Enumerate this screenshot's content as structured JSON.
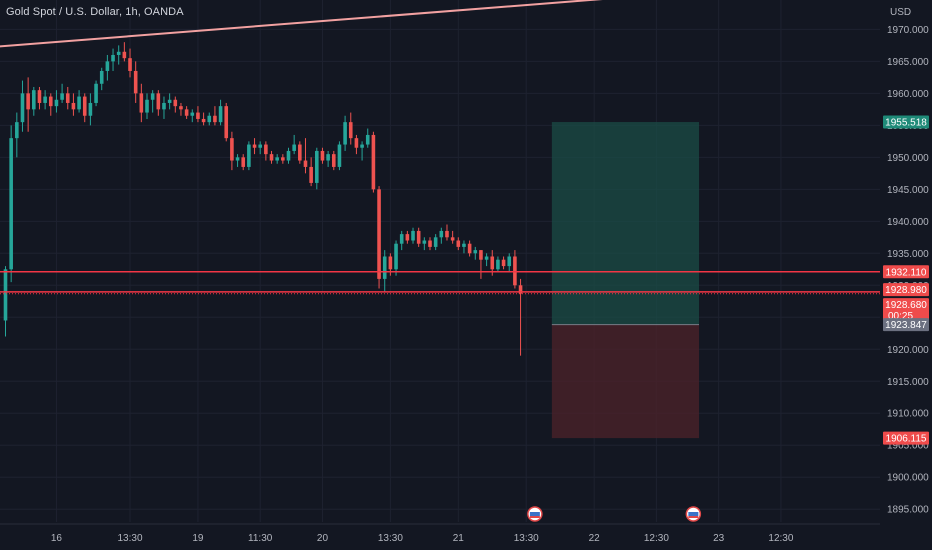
{
  "header": {
    "title": "Gold Spot / U.S. Dollar, 1h, OANDA",
    "currency": "USD"
  },
  "colors": {
    "background": "#131722",
    "grid": "#1e2230",
    "up": "#26a69a",
    "down": "#ef5350",
    "trendline": "#f2a1a1",
    "profit_zone": "#1b4c45",
    "loss_zone": "#4a2229",
    "target_label": "#1e8a78",
    "stop_label": "#ef4b4b",
    "entry_label": "#6b7080",
    "level_line": "#f23645"
  },
  "chart_data": {
    "type": "candlestick",
    "ylim": [
      1893,
      1975
    ],
    "y_ticks": [
      1895,
      1900,
      1905,
      1910,
      1915,
      1920,
      1925,
      1930,
      1935,
      1940,
      1945,
      1950,
      1955,
      1960,
      1965,
      1970
    ],
    "y_tick_labels": [
      "1895.000",
      "1900.000",
      "1905.000",
      "1910.000",
      "1915.000",
      "1920.000",
      "1925.000",
      "1930.000",
      "1935.000",
      "1940.000",
      "1945.000",
      "1950.000",
      "1955.000",
      "1960.000",
      "1965.000",
      "1970.000"
    ],
    "x_labels": [
      "16",
      "13:30",
      "19",
      "11:30",
      "20",
      "13:30",
      "21",
      "13:30",
      "22",
      "12:30",
      "23",
      "12:30"
    ],
    "x_label_index": [
      9,
      22,
      34,
      45,
      56,
      68,
      80,
      92,
      104,
      115,
      126,
      137
    ],
    "candles": [
      [
        1924.5,
        1933.0,
        1922.0,
        1932.5
      ],
      [
        1932.5,
        1955.0,
        1930.5,
        1953.0
      ],
      [
        1953.0,
        1957.0,
        1950.0,
        1955.5
      ],
      [
        1955.5,
        1962.0,
        1954.0,
        1960.0
      ],
      [
        1960.0,
        1962.5,
        1954.0,
        1957.5
      ],
      [
        1957.5,
        1961.0,
        1956.5,
        1960.5
      ],
      [
        1960.5,
        1961.0,
        1957.5,
        1958.5
      ],
      [
        1958.5,
        1960.5,
        1957.5,
        1959.5
      ],
      [
        1959.5,
        1960.0,
        1956.5,
        1958.0
      ],
      [
        1958.0,
        1960.5,
        1957.0,
        1959.0
      ],
      [
        1959.0,
        1961.5,
        1958.5,
        1960.0
      ],
      [
        1960.0,
        1961.0,
        1957.5,
        1958.5
      ],
      [
        1958.5,
        1960.0,
        1956.5,
        1957.5
      ],
      [
        1957.5,
        1960.5,
        1957.0,
        1959.5
      ],
      [
        1959.5,
        1960.0,
        1955.5,
        1956.5
      ],
      [
        1956.5,
        1960.0,
        1955.0,
        1958.5
      ],
      [
        1958.5,
        1962.0,
        1958.0,
        1961.5
      ],
      [
        1961.5,
        1964.0,
        1960.5,
        1963.5
      ],
      [
        1963.5,
        1966.0,
        1962.0,
        1965.0
      ],
      [
        1965.0,
        1967.0,
        1963.5,
        1966.0
      ],
      [
        1966.0,
        1967.5,
        1964.5,
        1966.5
      ],
      [
        1966.5,
        1968.0,
        1965.0,
        1965.5
      ],
      [
        1965.5,
        1967.0,
        1962.5,
        1963.5
      ],
      [
        1963.5,
        1965.0,
        1958.5,
        1960.0
      ],
      [
        1960.0,
        1961.5,
        1955.5,
        1957.0
      ],
      [
        1957.0,
        1960.0,
        1956.0,
        1959.0
      ],
      [
        1959.0,
        1960.5,
        1957.0,
        1960.0
      ],
      [
        1960.0,
        1960.5,
        1956.5,
        1957.5
      ],
      [
        1957.5,
        1959.5,
        1956.0,
        1958.5
      ],
      [
        1958.5,
        1960.0,
        1957.5,
        1959.0
      ],
      [
        1959.0,
        1959.5,
        1957.0,
        1958.0
      ],
      [
        1958.0,
        1958.5,
        1956.5,
        1957.5
      ],
      [
        1957.5,
        1958.0,
        1956.0,
        1956.5
      ],
      [
        1956.5,
        1957.5,
        1955.5,
        1957.0
      ],
      [
        1957.0,
        1958.0,
        1955.5,
        1956.0
      ],
      [
        1956.0,
        1957.0,
        1955.0,
        1955.5
      ],
      [
        1955.5,
        1957.0,
        1955.0,
        1956.5
      ],
      [
        1956.5,
        1958.0,
        1955.0,
        1955.5
      ],
      [
        1955.5,
        1959.0,
        1955.0,
        1958.0
      ],
      [
        1958.0,
        1958.5,
        1952.5,
        1953.0
      ],
      [
        1953.0,
        1954.0,
        1948.0,
        1949.5
      ],
      [
        1949.5,
        1950.5,
        1948.5,
        1950.0
      ],
      [
        1950.0,
        1950.5,
        1948.0,
        1948.5
      ],
      [
        1948.5,
        1952.5,
        1948.0,
        1952.0
      ],
      [
        1952.0,
        1953.0,
        1950.5,
        1951.5
      ],
      [
        1951.5,
        1952.5,
        1950.5,
        1952.0
      ],
      [
        1952.0,
        1952.5,
        1949.5,
        1950.5
      ],
      [
        1950.5,
        1951.0,
        1949.0,
        1949.5
      ],
      [
        1949.5,
        1950.5,
        1949.0,
        1950.0
      ],
      [
        1950.0,
        1950.5,
        1949.0,
        1949.5
      ],
      [
        1949.5,
        1951.5,
        1949.0,
        1951.0
      ],
      [
        1951.0,
        1953.5,
        1950.5,
        1952.0
      ],
      [
        1952.0,
        1952.5,
        1949.0,
        1949.5
      ],
      [
        1949.5,
        1953.0,
        1947.5,
        1948.5
      ],
      [
        1948.5,
        1950.0,
        1945.5,
        1946.0
      ],
      [
        1946.0,
        1951.5,
        1945.0,
        1951.0
      ],
      [
        1951.0,
        1951.5,
        1949.0,
        1949.5
      ],
      [
        1949.5,
        1951.0,
        1948.5,
        1950.5
      ],
      [
        1950.5,
        1951.0,
        1948.0,
        1948.5
      ],
      [
        1948.5,
        1952.5,
        1948.0,
        1952.0
      ],
      [
        1952.0,
        1956.5,
        1951.0,
        1955.5
      ],
      [
        1955.5,
        1957.0,
        1952.0,
        1953.0
      ],
      [
        1953.0,
        1953.5,
        1950.5,
        1951.5
      ],
      [
        1951.5,
        1952.5,
        1949.5,
        1952.0
      ],
      [
        1952.0,
        1954.5,
        1951.5,
        1953.5
      ],
      [
        1953.5,
        1954.0,
        1944.5,
        1945.0
      ],
      [
        1945.0,
        1945.5,
        1929.5,
        1931.0
      ],
      [
        1931.0,
        1935.5,
        1929.0,
        1934.5
      ],
      [
        1934.5,
        1935.0,
        1931.5,
        1932.5
      ],
      [
        1932.5,
        1937.0,
        1931.5,
        1936.5
      ],
      [
        1936.5,
        1938.5,
        1935.5,
        1938.0
      ],
      [
        1938.0,
        1938.5,
        1936.5,
        1937.0
      ],
      [
        1937.0,
        1939.0,
        1936.5,
        1938.5
      ],
      [
        1938.5,
        1939.0,
        1936.0,
        1936.5
      ],
      [
        1936.5,
        1937.5,
        1935.5,
        1937.0
      ],
      [
        1937.0,
        1937.5,
        1935.5,
        1936.0
      ],
      [
        1936.0,
        1938.0,
        1935.5,
        1937.5
      ],
      [
        1937.5,
        1939.0,
        1936.5,
        1938.5
      ],
      [
        1938.5,
        1939.5,
        1937.0,
        1937.5
      ],
      [
        1937.5,
        1938.5,
        1936.5,
        1937.0
      ],
      [
        1937.0,
        1937.5,
        1935.5,
        1936.0
      ],
      [
        1936.0,
        1937.0,
        1935.0,
        1936.5
      ],
      [
        1936.5,
        1937.0,
        1934.5,
        1935.0
      ],
      [
        1935.0,
        1936.0,
        1934.0,
        1935.5
      ],
      [
        1935.5,
        1935.5,
        1931.0,
        1934.0
      ],
      [
        1934.0,
        1935.0,
        1933.0,
        1934.5
      ],
      [
        1934.5,
        1935.5,
        1931.5,
        1932.5
      ],
      [
        1932.5,
        1934.5,
        1932.0,
        1934.0
      ],
      [
        1934.0,
        1934.5,
        1932.5,
        1933.0
      ],
      [
        1933.0,
        1935.0,
        1932.0,
        1934.5
      ],
      [
        1934.5,
        1935.5,
        1929.5,
        1930.0
      ],
      [
        1930.0,
        1931.0,
        1919.0,
        1928.7
      ]
    ],
    "trendline": {
      "start": [
        -3,
        1967.2
      ],
      "end": [
        112,
        1975.2
      ]
    },
    "levels": [
      {
        "price": 1932.11,
        "label": "1932.110",
        "style": "solid"
      },
      {
        "price": 1928.98,
        "label": "1928.980",
        "style": "solid"
      },
      {
        "price": 1928.68,
        "label": "1928.680",
        "sublabel": "00:25",
        "style": "dotted"
      }
    ],
    "position": {
      "entry": 1923.847,
      "entry_label": "1923.847",
      "target": 1955.518,
      "target_label": "1955.518",
      "stop": 1906.115,
      "stop_label": "1906.115",
      "start_index": 96,
      "end_index": 122
    },
    "event_markers": [
      93,
      121
    ]
  }
}
